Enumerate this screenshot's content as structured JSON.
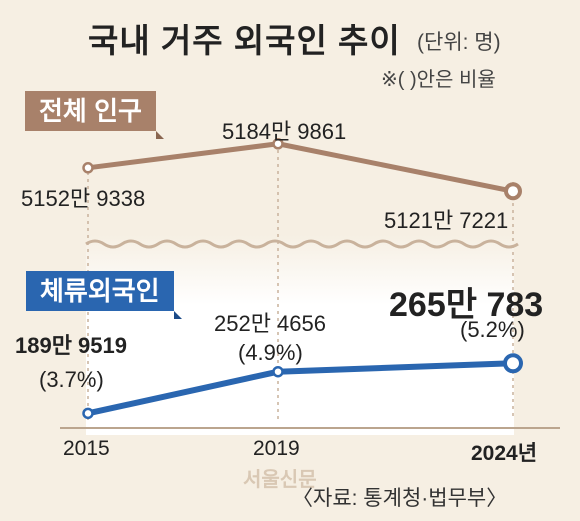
{
  "title": "국내 거주 외국인 추이",
  "unit": "(단위: 명)",
  "note": "※( )안은 비율",
  "source": "〈자료: 통계청·법무부〉",
  "watermark": "서울신문",
  "colors": {
    "total": "#a8816a",
    "foreign": "#2a66b0",
    "background": "#f6efe3"
  },
  "chart_data": [
    {
      "type": "line",
      "title": "전체 인구",
      "x": [
        "2015",
        "2019",
        "2024년"
      ],
      "series": [
        {
          "name": "전체 인구",
          "values": [
            51529338,
            51849861,
            51217221
          ],
          "labels": [
            "5152만 9338",
            "5184만 9861",
            "5121만 7221"
          ]
        }
      ]
    },
    {
      "type": "line",
      "title": "체류외국인",
      "x": [
        "2015",
        "2019",
        "2024년"
      ],
      "series": [
        {
          "name": "체류외국인",
          "values": [
            1899519,
            2524656,
            2650783
          ],
          "labels": [
            "189만 9519",
            "252만 4656",
            "265만 783"
          ],
          "ratios": [
            "(3.7%)",
            "(4.9%)",
            "(5.2%)"
          ]
        }
      ]
    }
  ]
}
